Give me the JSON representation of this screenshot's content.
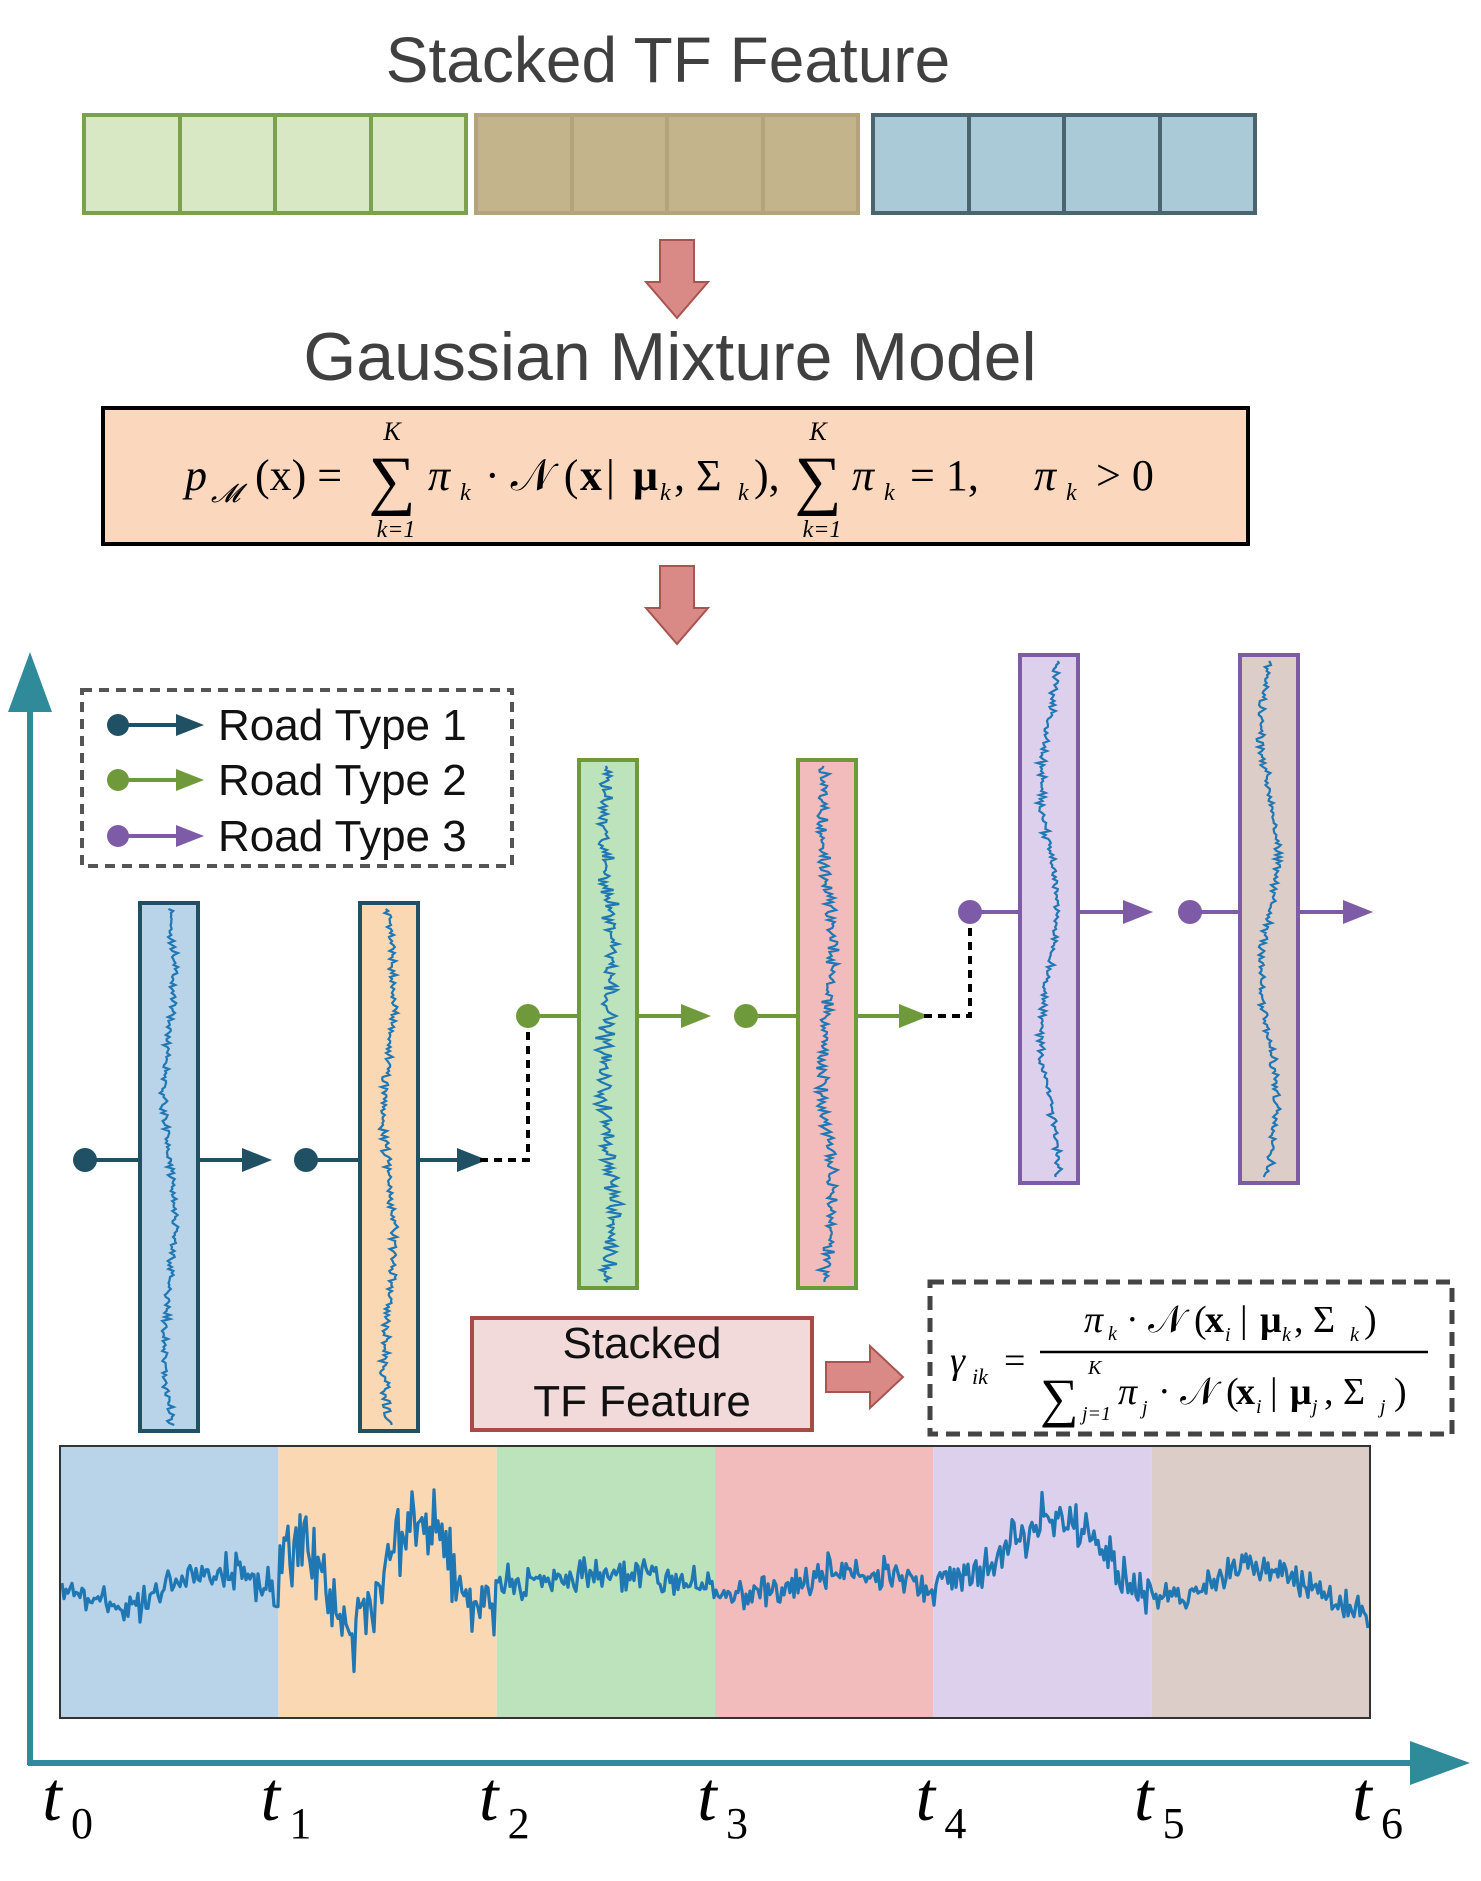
{
  "title_top": "Stacked TF Feature",
  "title_gmm": "Gaussian Mixture Model",
  "gmm_formula": {
    "p": "p",
    "sub_m": "𝓜",
    "lhs_rest": "(x) =",
    "sum_top": "K",
    "sum_bottom": "k=1",
    "term1": "π",
    "sub_k": "k",
    "dot_n": "· 𝒩 (",
    "x_bold": "x",
    "bar": " | ",
    "mu": "μ",
    "comma_sigma": ", Σ",
    "close": "),",
    "term2": "π",
    "equals_one": "= 1,",
    "term3": "π",
    "gt_zero": "> 0"
  },
  "legend": {
    "items": [
      {
        "label": "Road Type 1",
        "color": "#1f5064"
      },
      {
        "label": "Road Type 2",
        "color": "#6f9a3c"
      },
      {
        "label": "Road Type 3",
        "color": "#7d5ba6"
      }
    ]
  },
  "stacked_box_label_line1": "Stacked",
  "stacked_box_label_line2": "TF Feature",
  "gamma_formula": {
    "gamma": "γ",
    "sub_ik": "ik",
    "equals": "=",
    "num_pi": "π",
    "num_sub_k": "k",
    "num_dotn": "· 𝒩 (",
    "num_x": "x",
    "num_sub_i": "i",
    "num_bar": "|",
    "num_mu": "μ",
    "num_sub_k2": "k",
    "num_sigma": ", Σ",
    "num_sub_k3": "k",
    "num_close": ")",
    "den_sum": "∑",
    "den_sum_top": "K",
    "den_sum_bottom": "j=1",
    "den_pi": "π",
    "den_sub_j": "j",
    "den_dotn": "· 𝒩 (",
    "den_x": "x",
    "den_sub_i": "i",
    "den_bar": "|",
    "den_mu": "μ",
    "den_sub_j2": "j",
    "den_sigma": ", Σ",
    "den_sub_j3": "j",
    "den_close": ")"
  },
  "time_labels": [
    {
      "t": "t",
      "sub": "0"
    },
    {
      "t": "t",
      "sub": "1"
    },
    {
      "t": "t",
      "sub": "2"
    },
    {
      "t": "t",
      "sub": "3"
    },
    {
      "t": "t",
      "sub": "4"
    },
    {
      "t": "t",
      "sub": "5"
    },
    {
      "t": "t",
      "sub": "6"
    }
  ],
  "colors": {
    "axis": "#2f8a9a",
    "green_fill": "#d9e8c4",
    "green_stroke": "#7aa24a",
    "tan_fill": "#c4b48c",
    "tan_stroke": "#b4a47c",
    "blue_fill": "#a9cad6",
    "blue_stroke": "#4a6470",
    "orange_box_fill": "#fbd8bd",
    "arrow_fill": "#d98a86",
    "arrow_stroke": "#a85450",
    "signal": "#1f77b4",
    "segment_fills": [
      "#b9d3e8",
      "#fbd8b4",
      "#bde3bd",
      "#f2bcbc",
      "#ddd0ec",
      "#dccdc8"
    ],
    "strip_fills": [
      "#b9d3e8",
      "#fbd8b4",
      "#bde3bd",
      "#f2bcbc",
      "#ddd0ec",
      "#dccdc8"
    ],
    "strip_strokes": [
      "#1f5064",
      "#1f5064",
      "#6f9a3c",
      "#6f9a3c",
      "#7d5ba6",
      "#7d5ba6"
    ],
    "stacked_box_fill": "#f2dada",
    "stacked_box_stroke": "#a84a45"
  }
}
